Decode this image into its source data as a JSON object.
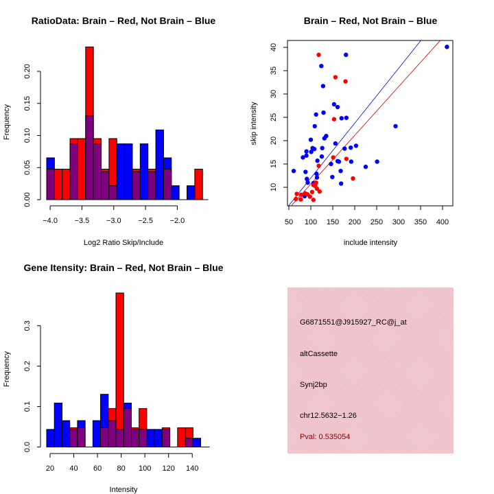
{
  "colors": {
    "brain": "#ff0000",
    "not_brain": "#0000ff",
    "overlap": "#7f007f",
    "brain_line": "#cc0000",
    "not_brain_line": "#0000cc",
    "info_bg": "#efc3cb",
    "pval_text": "#8b0000"
  },
  "chart_data": [
    {
      "id": "ratio-hist",
      "type": "bar",
      "title": "RatioData: Brain – Red, Not Brain – Blue",
      "xlabel": "Log2 Ratio Skip/Include",
      "ylabel": "Frequency",
      "xlim": [
        -4.055,
        -1.6
      ],
      "ylim": [
        0,
        0.2
      ],
      "xticks": [
        -4.0,
        -3.5,
        -3.0,
        -2.5,
        -2.0
      ],
      "xtick_labels": [
        "−4.0",
        "−3.5",
        "−3.0",
        "−2.5",
        "−2.0"
      ],
      "yticks": [
        0,
        0.05,
        0.1,
        0.15,
        0.2
      ],
      "ytick_labels": [
        "0.00",
        "0.05",
        "0.10",
        "0.15",
        "0.20"
      ],
      "bin_start": -4.055,
      "bin_width": 0.1226,
      "series": [
        {
          "name": "Brain",
          "color": "red",
          "values": [
            0.0476,
            0.0476,
            0.0476,
            0.0952,
            0.0952,
            0.2381,
            0.0952,
            0.0476,
            0.0952,
            0,
            0,
            0.0476,
            0,
            0.0476,
            0,
            0.0476,
            0,
            0,
            0,
            0.0476
          ]
        },
        {
          "name": "Not Brain",
          "color": "blue",
          "values": [
            0.0652,
            0,
            0,
            0.087,
            0,
            0.1304,
            0.087,
            0.0435,
            0.0217,
            0.087,
            0.087,
            0.0435,
            0.087,
            0.0435,
            0.1087,
            0.0652,
            0.0217,
            0,
            0.0217,
            0
          ]
        }
      ]
    },
    {
      "id": "intensity-scatter",
      "type": "scatter",
      "title": "Brain – Red, Not Brain – Blue",
      "xlabel": "include intensity",
      "ylabel": "skip intensity",
      "xlim": [
        47,
        423
      ],
      "ylim": [
        6,
        41.5
      ],
      "xticks": [
        50,
        100,
        150,
        200,
        250,
        300,
        350,
        400
      ],
      "xtick_labels": [
        "50",
        "100",
        "150",
        "200",
        "250",
        "300",
        "350",
        "400"
      ],
      "yticks": [
        10,
        15,
        20,
        25,
        30,
        35,
        40
      ],
      "ytick_labels": [
        "10",
        "15",
        "20",
        "25",
        "30",
        "35",
        "40"
      ],
      "series": [
        {
          "name": "Not Brain",
          "color": "blue",
          "points": [
            [
              410,
              40.1
            ],
            [
              180,
              38.4
            ],
            [
              124,
              36.0
            ],
            [
              128,
              31.7
            ],
            [
              153,
              27.8
            ],
            [
              161,
              27.2
            ],
            [
              112,
              25.6
            ],
            [
              129,
              26.0
            ],
            [
              170,
              24.8
            ],
            [
              181,
              24.9
            ],
            [
              293,
              23.1
            ],
            [
              109,
              23.1
            ],
            [
              135,
              21.0
            ],
            [
              131,
              20.5
            ],
            [
              100,
              20.2
            ],
            [
              156,
              19.4
            ],
            [
              104,
              18.4
            ],
            [
              108,
              18.2
            ],
            [
              126,
              18.4
            ],
            [
              101,
              17.6
            ],
            [
              90,
              17.7
            ],
            [
              191,
              18.5
            ],
            [
              203,
              18.9
            ],
            [
              177,
              18.3
            ],
            [
              82,
              16.4
            ],
            [
              90,
              16.8
            ],
            [
              125,
              16.6
            ],
            [
              115,
              15.7
            ],
            [
              146,
              15.0
            ],
            [
              161,
              15.6
            ],
            [
              164,
              15.5
            ],
            [
              192,
              15.5
            ],
            [
              251,
              15.5
            ],
            [
              225,
              14.4
            ],
            [
              61,
              13.5
            ],
            [
              88,
              13.3
            ],
            [
              168,
              13.5
            ],
            [
              113,
              12.9
            ],
            [
              114,
              12.1
            ],
            [
              149,
              12.2
            ],
            [
              91,
              11.8
            ],
            [
              93,
              11.0
            ],
            [
              106,
              10.9
            ],
            [
              169,
              10.8
            ],
            [
              86,
              8.1
            ]
          ]
        },
        {
          "name": "Brain",
          "color": "red",
          "points": [
            [
              118,
              38.4
            ],
            [
              156,
              33.6
            ],
            [
              179,
              32.7
            ],
            [
              153,
              24.6
            ],
            [
              151,
              16.4
            ],
            [
              181,
              16.1
            ],
            [
              118,
              14.6
            ],
            [
              196,
              11.9
            ],
            [
              112,
              11.0
            ],
            [
              106,
              10.5
            ],
            [
              114,
              9.7
            ],
            [
              120,
              9.1
            ],
            [
              103,
              9.0
            ],
            [
              68,
              8.6
            ],
            [
              78,
              8.4
            ],
            [
              87,
              8.7
            ],
            [
              92,
              8.5
            ],
            [
              98,
              8.0
            ],
            [
              66,
              7.5
            ],
            [
              77,
              7.4
            ],
            [
              106,
              7.3
            ],
            [
              110,
              10.3
            ]
          ]
        }
      ],
      "lines": [
        {
          "name": "Not Brain fit",
          "color": "blue",
          "from": [
            49,
            6
          ],
          "to": [
            351,
            41.5
          ]
        },
        {
          "name": "Brain fit",
          "color": "red",
          "from": [
            55,
            6
          ],
          "to": [
            395,
            41.5
          ]
        }
      ]
    },
    {
      "id": "gene-intensity-hist",
      "type": "bar",
      "title": "Gene Itensity: Brain – Red, Not Brain – Blue",
      "xlabel": "Intensity",
      "ylabel": "Frequency",
      "xlim": [
        17.1,
        150
      ],
      "ylim": [
        0,
        0.38
      ],
      "xticks": [
        20,
        40,
        60,
        80,
        100,
        120,
        140
      ],
      "xtick_labels": [
        "20",
        "40",
        "60",
        "80",
        "100",
        "120",
        "140"
      ],
      "yticks": [
        0,
        0.1,
        0.2,
        0.3
      ],
      "ytick_labels": [
        "0.0",
        "0.1",
        "0.2",
        "0.3"
      ],
      "bin_start": 17.1,
      "bin_width": 6.5,
      "series": [
        {
          "name": "Brain",
          "color": "red",
          "values": [
            0,
            0,
            0,
            0.0476,
            0.0476,
            0,
            0,
            0.0476,
            0.0952,
            0.381,
            0.0952,
            0.0476,
            0.0952,
            0,
            0,
            0.0476,
            0,
            0.0476,
            0.0476,
            0
          ]
        },
        {
          "name": "Not Brain",
          "color": "blue",
          "values": [
            0.0435,
            0.1087,
            0.0652,
            0.0435,
            0.0652,
            0,
            0.0652,
            0.1304,
            0.0652,
            0.0435,
            0.1087,
            0.0435,
            0.0435,
            0.0435,
            0.0435,
            0.0435,
            0,
            0,
            0.0217,
            0.0217
          ]
        }
      ]
    }
  ],
  "info_panel": {
    "probe_id": "G6871551@J915927_RC@j_at",
    "event_type": "altCassette",
    "gene": "Synj2bp",
    "location": "chr12.5632−1.26",
    "pval": "Pval: 0.535054"
  }
}
